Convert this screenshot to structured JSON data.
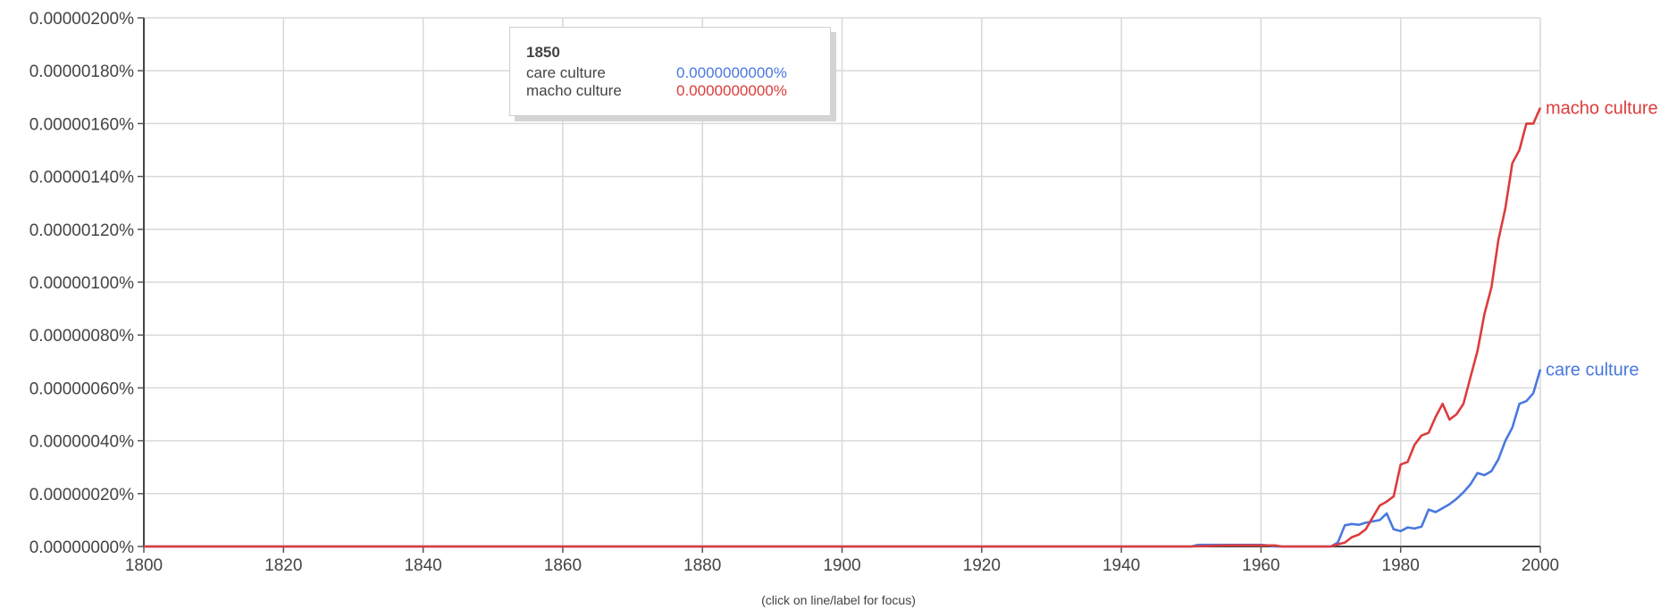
{
  "chart_data": {
    "type": "line",
    "title": "",
    "xlabel": "",
    "ylabel": "",
    "xlim": [
      1800,
      2000
    ],
    "ylim": [
      0,
      2e-06
    ],
    "x_ticks": [
      "1800",
      "1820",
      "1840",
      "1860",
      "1880",
      "1900",
      "1920",
      "1940",
      "1960",
      "1980",
      "2000"
    ],
    "x_tick_values": [
      1800,
      1820,
      1840,
      1860,
      1880,
      1900,
      1920,
      1940,
      1960,
      1980,
      2000
    ],
    "y_ticks": [
      "0.00000000%",
      "0.00000020%",
      "0.00000040%",
      "0.00000060%",
      "0.00000080%",
      "0.00000100%",
      "0.00000120%",
      "0.00000140%",
      "0.00000160%",
      "0.00000180%",
      "0.00000200%"
    ],
    "y_tick_values": [
      0,
      2e-07,
      4e-07,
      6e-07,
      8e-07,
      1e-06,
      1.2e-06,
      1.4e-06,
      1.6e-06,
      1.8e-06,
      2e-06
    ],
    "grid": true,
    "legend": "line-end labels",
    "series": [
      {
        "name": "care culture",
        "color": "#4a78e0",
        "points": [
          [
            1800,
            0
          ],
          [
            1950,
            0
          ],
          [
            1951,
            6e-09
          ],
          [
            1960,
            6e-09
          ],
          [
            1961,
            4e-09
          ],
          [
            1962,
            0
          ],
          [
            1970,
            0
          ],
          [
            1971,
            1.5e-08
          ],
          [
            1972,
            8e-08
          ],
          [
            1973,
            8.5e-08
          ],
          [
            1974,
            8.2e-08
          ],
          [
            1975,
            9e-08
          ],
          [
            1976,
            9.5e-08
          ],
          [
            1977,
            1e-07
          ],
          [
            1978,
            1.25e-07
          ],
          [
            1979,
            6.5e-08
          ],
          [
            1980,
            5.8e-08
          ],
          [
            1981,
            7.2e-08
          ],
          [
            1982,
            6.8e-08
          ],
          [
            1983,
            7.5e-08
          ],
          [
            1984,
            1.4e-07
          ],
          [
            1985,
            1.3e-07
          ],
          [
            1986,
            1.45e-07
          ],
          [
            1987,
            1.6e-07
          ],
          [
            1988,
            1.8e-07
          ],
          [
            1989,
            2.05e-07
          ],
          [
            1990,
            2.35e-07
          ],
          [
            1991,
            2.78e-07
          ],
          [
            1992,
            2.7e-07
          ],
          [
            1993,
            2.85e-07
          ],
          [
            1994,
            3.3e-07
          ],
          [
            1995,
            4e-07
          ],
          [
            1996,
            4.5e-07
          ],
          [
            1997,
            5.4e-07
          ],
          [
            1998,
            5.5e-07
          ],
          [
            1999,
            5.8e-07
          ],
          [
            2000,
            6.7e-07
          ]
        ]
      },
      {
        "name": "macho culture",
        "color": "#dc3c3c",
        "points": [
          [
            1800,
            0
          ],
          [
            1950,
            0
          ],
          [
            1955,
            4e-09
          ],
          [
            1962,
            4e-09
          ],
          [
            1963,
            0
          ],
          [
            1970,
            0
          ],
          [
            1971,
            8e-09
          ],
          [
            1972,
            1.5e-08
          ],
          [
            1973,
            3.5e-08
          ],
          [
            1974,
            4.5e-08
          ],
          [
            1975,
            6.5e-08
          ],
          [
            1976,
            1.1e-07
          ],
          [
            1977,
            1.55e-07
          ],
          [
            1978,
            1.7e-07
          ],
          [
            1979,
            1.9e-07
          ],
          [
            1980,
            3.1e-07
          ],
          [
            1981,
            3.2e-07
          ],
          [
            1982,
            3.85e-07
          ],
          [
            1983,
            4.2e-07
          ],
          [
            1984,
            4.3e-07
          ],
          [
            1985,
            4.9e-07
          ],
          [
            1986,
            5.4e-07
          ],
          [
            1987,
            4.8e-07
          ],
          [
            1988,
            5e-07
          ],
          [
            1989,
            5.4e-07
          ],
          [
            1990,
            6.4e-07
          ],
          [
            1991,
            7.4e-07
          ],
          [
            1992,
            8.8e-07
          ],
          [
            1993,
            9.8e-07
          ],
          [
            1994,
            1.16e-06
          ],
          [
            1995,
            1.28e-06
          ],
          [
            1996,
            1.45e-06
          ],
          [
            1997,
            1.5e-06
          ],
          [
            1998,
            1.6e-06
          ],
          [
            1999,
            1.6e-06
          ],
          [
            2000,
            1.66e-06
          ]
        ]
      }
    ],
    "tooltip": {
      "year": "1850",
      "rows": [
        {
          "name": "care culture",
          "value": "0.0000000000%",
          "color": "#4a78e0"
        },
        {
          "name": "macho culture",
          "value": "0.0000000000%",
          "color": "#dc3c3c"
        }
      ]
    },
    "hint": "(click on line/label for focus)"
  }
}
